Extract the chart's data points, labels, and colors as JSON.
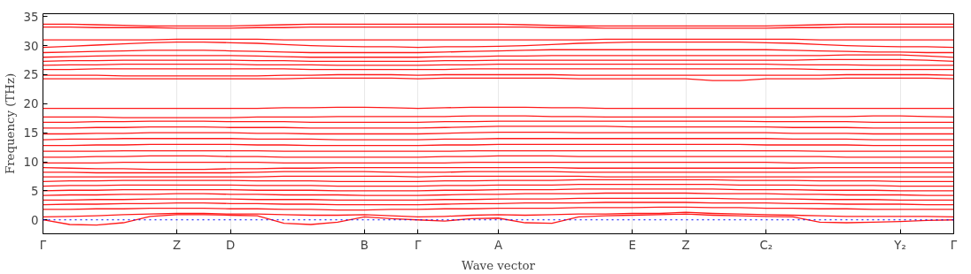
{
  "chart_data": {
    "type": "line",
    "xlabel": "Wave vector",
    "ylabel": "Frequency (THz)",
    "grid": "x",
    "line_style": "solid",
    "marker": "none",
    "categories": [
      "Γ",
      null,
      null,
      null,
      null,
      "Z",
      null,
      "D",
      null,
      null,
      null,
      null,
      "B",
      null,
      "Γ",
      null,
      null,
      "A",
      null,
      null,
      null,
      null,
      "E",
      null,
      "Z",
      null,
      null,
      "C₂",
      null,
      null,
      null,
      null,
      "Y₂",
      null,
      "Γ"
    ],
    "ylim": [
      -2.4,
      35.5
    ],
    "yticks": [
      0,
      5,
      10,
      15,
      20,
      25,
      30,
      35
    ],
    "ref_lines": [
      {
        "axis": "y",
        "value": 0,
        "color": "#0000ff",
        "line_style": "dotted"
      }
    ],
    "series": [
      {
        "color": "#ff0000",
        "values": [
          0,
          -0.8,
          -0.9,
          -0.5,
          0.6,
          0.9,
          0.9,
          0.8,
          0.7,
          -0.6,
          -0.8,
          -0.4,
          0.5,
          0.2,
          0,
          -0.2,
          0.2,
          0.3,
          -0.5,
          -0.6,
          0.5,
          0.7,
          0.8,
          0.9,
          1.0,
          0.8,
          0.7,
          0.6,
          0.5,
          -0.4,
          -0.5,
          -0.4,
          -0.3,
          -0.1,
          0
        ]
      },
      {
        "color": "#ff0000",
        "values": [
          0.5,
          0.6,
          0.7,
          0.9,
          1.0,
          1.1,
          1.1,
          1.0,
          1.0,
          0.9,
          0.8,
          0.8,
          0.9,
          0.7,
          0.5,
          0.6,
          0.8,
          0.9,
          0.8,
          0.9,
          1.0,
          1.0,
          1.1,
          1.1,
          1.3,
          1.1,
          1.0,
          0.9,
          0.8,
          0.7,
          0.6,
          0.6,
          0.6,
          0.6,
          0.5
        ]
      },
      {
        "color": "#ff0000",
        "values": [
          1.8,
          1.8,
          1.9,
          1.9,
          2.0,
          2.0,
          2.0,
          1.9,
          1.9,
          1.8,
          1.8,
          1.7,
          1.7,
          1.8,
          1.8,
          1.9,
          1.9,
          2.0,
          2.0,
          2.0,
          2.1,
          2.1,
          2.1,
          2.2,
          2.2,
          2.1,
          2.1,
          2.0,
          2.0,
          1.9,
          1.9,
          1.8,
          1.8,
          1.8,
          1.8
        ]
      },
      {
        "color": "#ff0000",
        "values": [
          2.6,
          2.7,
          2.7,
          2.8,
          2.8,
          2.9,
          2.9,
          2.8,
          2.8,
          2.7,
          2.7,
          2.6,
          2.6,
          2.6,
          2.6,
          2.7,
          2.8,
          2.8,
          2.9,
          2.9,
          2.9,
          3.0,
          3.0,
          3.0,
          3.0,
          2.9,
          2.9,
          2.9,
          2.8,
          2.8,
          2.7,
          2.7,
          2.7,
          2.6,
          2.6
        ]
      },
      {
        "color": "#ff0000",
        "values": [
          3.4,
          3.4,
          3.5,
          3.5,
          3.6,
          3.6,
          3.6,
          3.6,
          3.5,
          3.5,
          3.5,
          3.4,
          3.4,
          3.4,
          3.4,
          3.5,
          3.5,
          3.6,
          3.6,
          3.6,
          3.7,
          3.7,
          3.7,
          3.7,
          3.7,
          3.7,
          3.6,
          3.6,
          3.6,
          3.5,
          3.5,
          3.5,
          3.4,
          3.4,
          3.4
        ]
      },
      {
        "color": "#ff0000",
        "values": [
          4.2,
          4.3,
          4.3,
          4.4,
          4.4,
          4.5,
          4.5,
          4.4,
          4.4,
          4.3,
          4.3,
          4.3,
          4.2,
          4.2,
          4.2,
          4.3,
          4.4,
          4.4,
          4.5,
          4.5,
          4.5,
          4.6,
          4.6,
          4.6,
          4.6,
          4.5,
          4.5,
          4.5,
          4.4,
          4.4,
          4.3,
          4.3,
          4.3,
          4.2,
          4.2
        ]
      },
      {
        "color": "#ff0000",
        "values": [
          5.0,
          5.1,
          5.1,
          5.2,
          5.2,
          5.2,
          5.2,
          5.2,
          5.1,
          5.1,
          5.1,
          5.0,
          5.0,
          5.0,
          5.0,
          5.1,
          5.1,
          5.2,
          5.2,
          5.2,
          5.3,
          5.3,
          5.3,
          5.3,
          5.3,
          5.3,
          5.2,
          5.2,
          5.2,
          5.1,
          5.1,
          5.1,
          5.0,
          5.0,
          5.0
        ]
      },
      {
        "color": "#ff0000",
        "values": [
          5.8,
          5.9,
          5.9,
          6.0,
          6.0,
          6.0,
          6.0,
          6.0,
          5.9,
          5.9,
          5.9,
          5.8,
          5.8,
          5.8,
          5.8,
          5.9,
          5.9,
          6.0,
          6.0,
          6.0,
          6.1,
          6.1,
          6.1,
          6.1,
          6.1,
          6.1,
          6.0,
          6.0,
          6.0,
          5.9,
          5.9,
          5.9,
          5.8,
          5.8,
          5.8
        ]
      },
      {
        "color": "#ff0000",
        "values": [
          6.6,
          6.7,
          6.7,
          6.8,
          6.8,
          6.8,
          6.8,
          6.8,
          6.7,
          6.7,
          6.7,
          6.6,
          6.6,
          6.6,
          6.6,
          6.7,
          6.7,
          6.8,
          6.8,
          6.8,
          6.9,
          6.9,
          6.9,
          6.9,
          6.9,
          6.9,
          6.8,
          6.8,
          6.8,
          6.7,
          6.7,
          6.7,
          6.6,
          6.6,
          6.6
        ]
      },
      {
        "color": "#ff0000",
        "values": [
          7.4,
          7.4,
          7.4,
          7.4,
          7.4,
          7.4,
          7.4,
          7.4,
          7.4,
          7.5,
          7.5,
          7.5,
          7.5,
          7.5,
          7.4,
          7.5,
          7.5,
          7.5,
          7.5,
          7.5,
          7.5,
          7.4,
          7.4,
          7.4,
          7.4,
          7.4,
          7.4,
          7.4,
          7.4,
          7.4,
          7.4,
          7.4,
          7.4,
          7.4,
          7.4
        ]
      },
      {
        "color": "#ff0000",
        "values": [
          8.2,
          8.2,
          8.1,
          8.1,
          8.1,
          8.1,
          8.1,
          8.1,
          8.2,
          8.3,
          8.3,
          8.3,
          8.3,
          8.2,
          8.2,
          8.2,
          8.3,
          8.3,
          8.3,
          8.3,
          8.2,
          8.2,
          8.2,
          8.2,
          8.2,
          8.2,
          8.2,
          8.2,
          8.2,
          8.2,
          8.2,
          8.2,
          8.2,
          8.2,
          8.2
        ]
      },
      {
        "color": "#ff0000",
        "values": [
          9.0,
          8.9,
          8.8,
          8.8,
          8.7,
          8.7,
          8.7,
          8.8,
          8.8,
          8.9,
          8.9,
          9.0,
          9.0,
          9.0,
          9.0,
          9.0,
          9.0,
          9.0,
          9.0,
          9.0,
          8.9,
          8.9,
          8.9,
          8.9,
          8.9,
          8.9,
          8.9,
          8.9,
          8.9,
          9.0,
          9.0,
          9.0,
          9.0,
          9.0,
          9.0
        ]
      },
      {
        "color": "#ff0000",
        "values": [
          9.8,
          9.8,
          9.8,
          9.9,
          9.9,
          9.9,
          9.9,
          9.9,
          9.9,
          9.8,
          9.8,
          9.8,
          9.8,
          9.8,
          9.8,
          9.8,
          9.9,
          9.9,
          9.9,
          9.9,
          9.9,
          9.9,
          9.9,
          9.9,
          9.9,
          9.9,
          9.9,
          9.9,
          9.8,
          9.8,
          9.8,
          9.8,
          9.8,
          9.8,
          9.8
        ]
      },
      {
        "color": "#ff0000",
        "values": [
          10.8,
          10.8,
          10.9,
          10.9,
          11.0,
          11.0,
          11.0,
          10.9,
          10.9,
          10.8,
          10.8,
          10.8,
          10.8,
          10.8,
          10.8,
          10.9,
          10.9,
          11.0,
          11.0,
          11.0,
          10.9,
          10.9,
          10.9,
          10.9,
          10.9,
          10.9,
          10.9,
          10.9,
          10.9,
          10.9,
          10.8,
          10.8,
          10.8,
          10.8,
          10.8
        ]
      },
      {
        "color": "#ff0000",
        "values": [
          11.8,
          11.8,
          11.8,
          11.9,
          11.9,
          11.9,
          11.9,
          11.9,
          11.9,
          11.8,
          11.8,
          11.8,
          11.8,
          11.8,
          11.8,
          11.8,
          11.9,
          11.9,
          11.9,
          11.9,
          11.9,
          11.9,
          11.9,
          11.9,
          11.9,
          11.9,
          11.9,
          11.9,
          11.9,
          11.8,
          11.8,
          11.8,
          11.8,
          11.8,
          11.8
        ]
      },
      {
        "color": "#ff0000",
        "values": [
          12.8,
          12.8,
          12.9,
          12.9,
          13.0,
          13.0,
          13.0,
          13.0,
          12.9,
          12.9,
          12.8,
          12.8,
          12.8,
          12.8,
          12.8,
          12.9,
          12.9,
          13.0,
          13.0,
          13.0,
          13.0,
          13.0,
          13.0,
          13.0,
          13.0,
          13.0,
          13.0,
          12.9,
          12.9,
          12.9,
          12.9,
          12.8,
          12.8,
          12.8,
          12.8
        ]
      },
      {
        "color": "#ff0000",
        "values": [
          13.8,
          13.9,
          13.9,
          14.0,
          14.0,
          14.0,
          14.0,
          14.0,
          13.9,
          13.9,
          13.9,
          13.8,
          13.8,
          13.8,
          13.8,
          13.9,
          13.9,
          14.0,
          14.0,
          14.0,
          14.0,
          14.0,
          14.0,
          14.0,
          14.0,
          14.0,
          14.0,
          14.0,
          13.9,
          13.9,
          13.9,
          13.8,
          13.8,
          13.8,
          13.8
        ]
      },
      {
        "color": "#ff0000",
        "values": [
          14.8,
          14.8,
          14.9,
          14.9,
          15.0,
          15.0,
          15.0,
          15.0,
          14.9,
          14.9,
          14.8,
          14.8,
          14.8,
          14.8,
          14.8,
          14.9,
          15.0,
          15.1,
          15.1,
          15.1,
          15.0,
          15.0,
          15.0,
          15.0,
          15.0,
          15.0,
          15.0,
          15.0,
          14.9,
          14.9,
          14.9,
          14.8,
          14.8,
          14.8,
          14.8
        ]
      },
      {
        "color": "#ff0000",
        "values": [
          15.8,
          15.8,
          15.9,
          15.9,
          16.0,
          16.0,
          16.0,
          15.9,
          15.9,
          15.9,
          15.8,
          15.8,
          15.8,
          15.8,
          15.8,
          15.9,
          16.0,
          16.1,
          16.1,
          16.1,
          16.1,
          16.1,
          16.0,
          16.0,
          16.0,
          16.0,
          16.0,
          16.0,
          15.9,
          15.9,
          15.9,
          15.8,
          15.8,
          15.8,
          15.8
        ]
      },
      {
        "color": "#ff0000",
        "values": [
          16.8,
          16.8,
          16.9,
          16.9,
          17.0,
          17.0,
          17.0,
          16.9,
          16.9,
          16.9,
          16.8,
          16.8,
          16.8,
          16.8,
          16.8,
          16.9,
          16.9,
          17.0,
          17.0,
          17.0,
          17.0,
          17.0,
          17.0,
          17.0,
          17.0,
          17.0,
          17.0,
          16.9,
          16.9,
          16.9,
          16.9,
          16.8,
          16.8,
          16.8,
          16.8
        ]
      },
      {
        "color": "#ff0000",
        "values": [
          17.7,
          17.7,
          17.7,
          17.6,
          17.6,
          17.6,
          17.6,
          17.6,
          17.7,
          17.7,
          17.7,
          17.8,
          17.8,
          17.8,
          17.8,
          17.8,
          17.9,
          17.9,
          17.9,
          17.8,
          17.8,
          17.7,
          17.7,
          17.7,
          17.7,
          17.7,
          17.7,
          17.7,
          17.7,
          17.8,
          17.8,
          17.9,
          17.9,
          17.8,
          17.7
        ]
      },
      {
        "color": "#ff0000",
        "values": [
          19.2,
          19.2,
          19.2,
          19.2,
          19.2,
          19.2,
          19.2,
          19.2,
          19.2,
          19.3,
          19.3,
          19.4,
          19.4,
          19.3,
          19.2,
          19.3,
          19.4,
          19.4,
          19.4,
          19.3,
          19.3,
          19.2,
          19.2,
          19.2,
          19.2,
          19.2,
          19.2,
          19.2,
          19.2,
          19.2,
          19.2,
          19.2,
          19.2,
          19.2,
          19.2
        ]
      },
      {
        "color": "#ff0000",
        "values": [
          24.3,
          24.3,
          24.3,
          24.3,
          24.3,
          24.3,
          24.3,
          24.3,
          24.3,
          24.3,
          24.4,
          24.4,
          24.4,
          24.4,
          24.3,
          24.4,
          24.4,
          24.4,
          24.4,
          24.4,
          24.3,
          24.3,
          24.3,
          24.3,
          24.3,
          24.0,
          24.0,
          24.3,
          24.3,
          24.3,
          24.4,
          24.4,
          24.4,
          24.4,
          24.3
        ]
      },
      {
        "color": "#ff0000",
        "values": [
          24.9,
          24.9,
          24.9,
          24.8,
          24.8,
          24.8,
          24.8,
          24.8,
          24.8,
          24.9,
          24.9,
          25.0,
          25.0,
          25.0,
          24.9,
          25.0,
          25.0,
          25.0,
          25.0,
          25.0,
          24.9,
          24.9,
          24.9,
          24.9,
          24.9,
          24.9,
          24.9,
          24.9,
          24.9,
          24.9,
          25.0,
          25.0,
          25.0,
          25.0,
          24.9
        ]
      },
      {
        "color": "#ff0000",
        "values": [
          25.9,
          25.9,
          26.0,
          26.0,
          26.0,
          26.0,
          26.0,
          26.0,
          26.0,
          26.0,
          25.9,
          25.9,
          25.9,
          25.9,
          25.9,
          25.9,
          26.0,
          26.0,
          26.0,
          26.0,
          26.0,
          26.0,
          26.0,
          26.0,
          26.0,
          26.0,
          26.0,
          26.0,
          26.0,
          25.9,
          25.9,
          25.9,
          25.9,
          25.9,
          25.9
        ]
      },
      {
        "color": "#ff0000",
        "values": [
          26.6,
          26.7,
          26.7,
          26.8,
          26.8,
          26.8,
          26.8,
          26.8,
          26.7,
          26.7,
          26.7,
          26.6,
          26.6,
          26.6,
          26.6,
          26.7,
          26.7,
          26.8,
          26.8,
          26.8,
          26.8,
          26.8,
          26.8,
          26.8,
          26.8,
          26.8,
          26.8,
          26.8,
          26.7,
          26.7,
          26.7,
          26.6,
          26.6,
          26.6,
          26.6
        ]
      },
      {
        "color": "#ff0000",
        "values": [
          27.3,
          27.4,
          27.4,
          27.5,
          27.5,
          27.5,
          27.5,
          27.5,
          27.4,
          27.4,
          27.3,
          27.3,
          27.3,
          27.3,
          27.3,
          27.4,
          27.4,
          27.5,
          27.5,
          27.5,
          27.5,
          27.5,
          27.5,
          27.5,
          27.5,
          27.5,
          27.5,
          27.5,
          27.5,
          27.6,
          27.6,
          27.6,
          27.6,
          27.5,
          27.3
        ]
      },
      {
        "color": "#ff0000",
        "values": [
          28.0,
          28.1,
          28.2,
          28.3,
          28.3,
          28.3,
          28.3,
          28.3,
          28.2,
          28.1,
          28.0,
          28.0,
          28.0,
          28.0,
          28.0,
          28.1,
          28.1,
          28.2,
          28.2,
          28.3,
          28.3,
          28.3,
          28.3,
          28.3,
          28.3,
          28.3,
          28.3,
          28.3,
          28.3,
          28.3,
          28.4,
          28.4,
          28.4,
          28.2,
          28.0
        ]
      },
      {
        "color": "#ff0000",
        "values": [
          28.8,
          28.9,
          29.0,
          29.1,
          29.2,
          29.2,
          29.2,
          29.1,
          29.0,
          28.9,
          28.8,
          28.8,
          28.8,
          28.8,
          28.8,
          28.9,
          29.0,
          29.1,
          29.2,
          29.3,
          29.3,
          29.3,
          29.3,
          29.3,
          29.3,
          29.3,
          29.3,
          29.3,
          29.2,
          29.1,
          29.0,
          28.9,
          28.9,
          28.8,
          28.8
        ]
      },
      {
        "color": "#ff0000",
        "values": [
          29.7,
          29.9,
          30.1,
          30.3,
          30.5,
          30.6,
          30.6,
          30.5,
          30.4,
          30.2,
          30.0,
          29.9,
          29.8,
          29.8,
          29.7,
          29.8,
          29.8,
          29.9,
          30.0,
          30.2,
          30.4,
          30.5,
          30.6,
          30.6,
          30.6,
          30.6,
          30.6,
          30.5,
          30.4,
          30.2,
          30.0,
          29.9,
          29.8,
          29.8,
          29.7
        ]
      },
      {
        "color": "#ff0000",
        "values": [
          31.0,
          31.0,
          31.0,
          31.0,
          31.0,
          31.1,
          31.1,
          31.1,
          31.1,
          31.0,
          31.0,
          31.0,
          31.0,
          31.0,
          31.0,
          31.0,
          31.0,
          31.0,
          31.0,
          31.0,
          31.0,
          31.1,
          31.1,
          31.1,
          31.1,
          31.1,
          31.1,
          31.1,
          31.1,
          31.0,
          31.0,
          31.0,
          31.0,
          31.0,
          31.0
        ]
      },
      {
        "color": "#ff0000",
        "values": [
          33.2,
          33.2,
          33.1,
          33.1,
          33.1,
          33.0,
          33.0,
          33.0,
          33.1,
          33.1,
          33.2,
          33.2,
          33.2,
          33.2,
          33.2,
          33.2,
          33.2,
          33.2,
          33.2,
          33.1,
          33.1,
          33.0,
          33.0,
          33.0,
          33.0,
          33.0,
          33.0,
          33.0,
          33.1,
          33.1,
          33.2,
          33.2,
          33.2,
          33.2,
          33.2
        ]
      },
      {
        "color": "#ff0000",
        "values": [
          33.7,
          33.7,
          33.6,
          33.5,
          33.4,
          33.4,
          33.4,
          33.4,
          33.5,
          33.6,
          33.7,
          33.7,
          33.7,
          33.7,
          33.7,
          33.7,
          33.7,
          33.7,
          33.6,
          33.5,
          33.4,
          33.4,
          33.4,
          33.4,
          33.4,
          33.4,
          33.4,
          33.4,
          33.5,
          33.6,
          33.7,
          33.7,
          33.7,
          33.7,
          33.7
        ]
      }
    ]
  }
}
